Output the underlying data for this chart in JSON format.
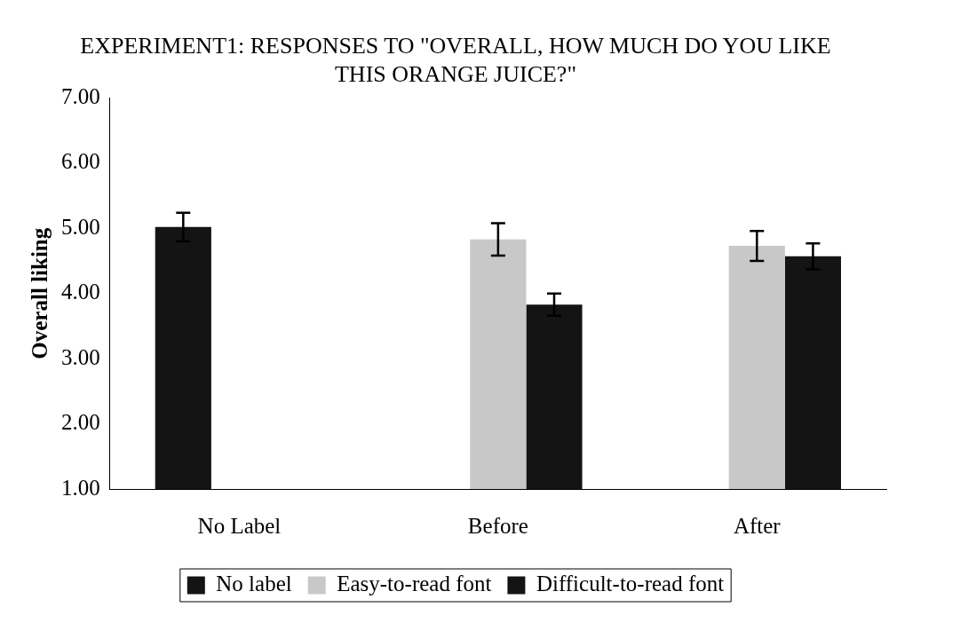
{
  "chart_data": {
    "type": "bar",
    "title": "EXPERIMENT1: RESPONSES TO \"OVERALL, HOW MUCH DO YOU LIKE THIS ORANGE JUICE?\"",
    "ylabel": "Overall liking",
    "categories": [
      "No Label",
      "Before",
      "After"
    ],
    "series": [
      {
        "name": "No label",
        "color": "#141414",
        "values": [
          5.02,
          null,
          null
        ],
        "errors": [
          0.22,
          null,
          null
        ]
      },
      {
        "name": "Easy-to-read font",
        "color": "#c8c8c8",
        "values": [
          null,
          4.83,
          4.73
        ],
        "errors": [
          null,
          0.25,
          0.23
        ]
      },
      {
        "name": "Difficult-to-read font",
        "color": "#141414",
        "values": [
          null,
          3.83,
          4.57
        ],
        "errors": [
          null,
          0.17,
          0.2
        ]
      }
    ],
    "ylim": [
      1,
      7
    ],
    "yticks": [
      {
        "value": 1,
        "label": "1.00"
      },
      {
        "value": 2,
        "label": "2.00"
      },
      {
        "value": 3,
        "label": "3.00"
      },
      {
        "value": 4,
        "label": "4.00"
      },
      {
        "value": 5,
        "label": "5.00"
      },
      {
        "value": 6,
        "label": "6.00"
      },
      {
        "value": 7,
        "label": "7.00"
      }
    ],
    "grid": false,
    "legend": "bottom"
  }
}
